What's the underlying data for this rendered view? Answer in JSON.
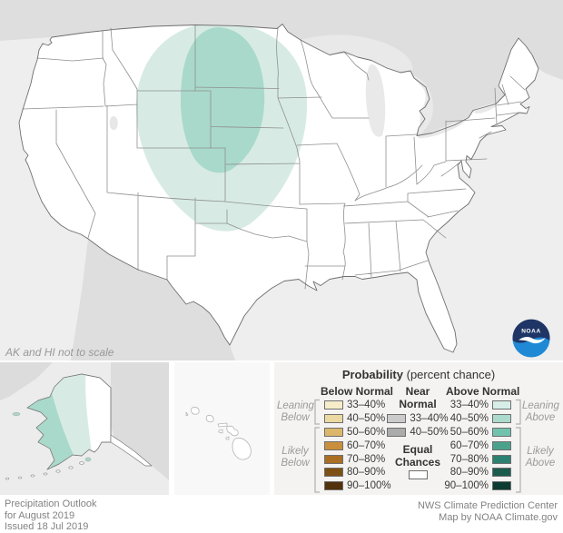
{
  "map": {
    "note": "AK and HI not to scale",
    "colors": {
      "ocean": "#eeeeee",
      "foreign_land": "#dedede",
      "us_land": "#ffffff",
      "lake": "#e9e9e9",
      "state_border": "#8f8f8f",
      "outline": "#6e6e6e"
    },
    "shaded_regions": [
      {
        "outlook": "Above Normal",
        "probability": "33–40%",
        "color": "#d7ebe4",
        "area": "Northern Plains: MT, WY, northeast CO, ND, SD, NE, KS, western MN, western IA"
      },
      {
        "outlook": "Above Normal",
        "probability": "40–50%",
        "color": "#a9d9ca",
        "area": "eastern MT, northeast WY, western ND, western SD"
      },
      {
        "outlook": "Above Normal",
        "probability": "33–40%",
        "color": "#d7ebe4",
        "area": "west-central Alaska band"
      },
      {
        "outlook": "Above Normal",
        "probability": "40–50%",
        "color": "#a9d9ca",
        "area": "far western Alaska"
      }
    ]
  },
  "legend": {
    "title": "Probability",
    "title_suffix": "(percent chance)",
    "columns": {
      "below": {
        "header": "Below Normal",
        "rows": [
          {
            "label": "33–40%",
            "color": "#f6ecca"
          },
          {
            "label": "40–50%",
            "color": "#ecd9a1"
          },
          {
            "label": "50–60%",
            "color": "#dcb76b"
          },
          {
            "label": "60–70%",
            "color": "#c98f3d"
          },
          {
            "label": "70–80%",
            "color": "#aa6e24"
          },
          {
            "label": "80–90%",
            "color": "#7d5014"
          },
          {
            "label": "90–100%",
            "color": "#53310c"
          }
        ]
      },
      "near": {
        "header": "Near Normal",
        "rows": [
          {
            "label": "33–40%",
            "color": "#cbcbcb"
          },
          {
            "label": "40–50%",
            "color": "#ababab"
          }
        ],
        "equal_header": "Equal Chances",
        "equal_color": "#ffffff"
      },
      "above": {
        "header": "Above Normal",
        "rows": [
          {
            "label": "33–40%",
            "color": "#d7eee8"
          },
          {
            "label": "40–50%",
            "color": "#abdbcd"
          },
          {
            "label": "50–60%",
            "color": "#72c3ae"
          },
          {
            "label": "60–70%",
            "color": "#4aa28d"
          },
          {
            "label": "70–80%",
            "color": "#2c8170"
          },
          {
            "label": "80–90%",
            "color": "#1c5c4e"
          },
          {
            "label": "90–100%",
            "color": "#0c3b31"
          }
        ]
      }
    },
    "side_labels": {
      "leaning_below": "Leaning Below",
      "likely_below": "Likely Below",
      "leaning_above": "Leaning Above",
      "likely_above": "Likely Above"
    }
  },
  "logo": {
    "text": "NOAA",
    "navy": "#1e3566",
    "blue": "#2089d5"
  },
  "footer": {
    "left": [
      "Precipitation Outlook",
      "for August 2019",
      "Issued 18 Jul 2019"
    ],
    "right": [
      "NWS Climate Prediction Center",
      "Map by NOAA Climate.gov"
    ]
  }
}
